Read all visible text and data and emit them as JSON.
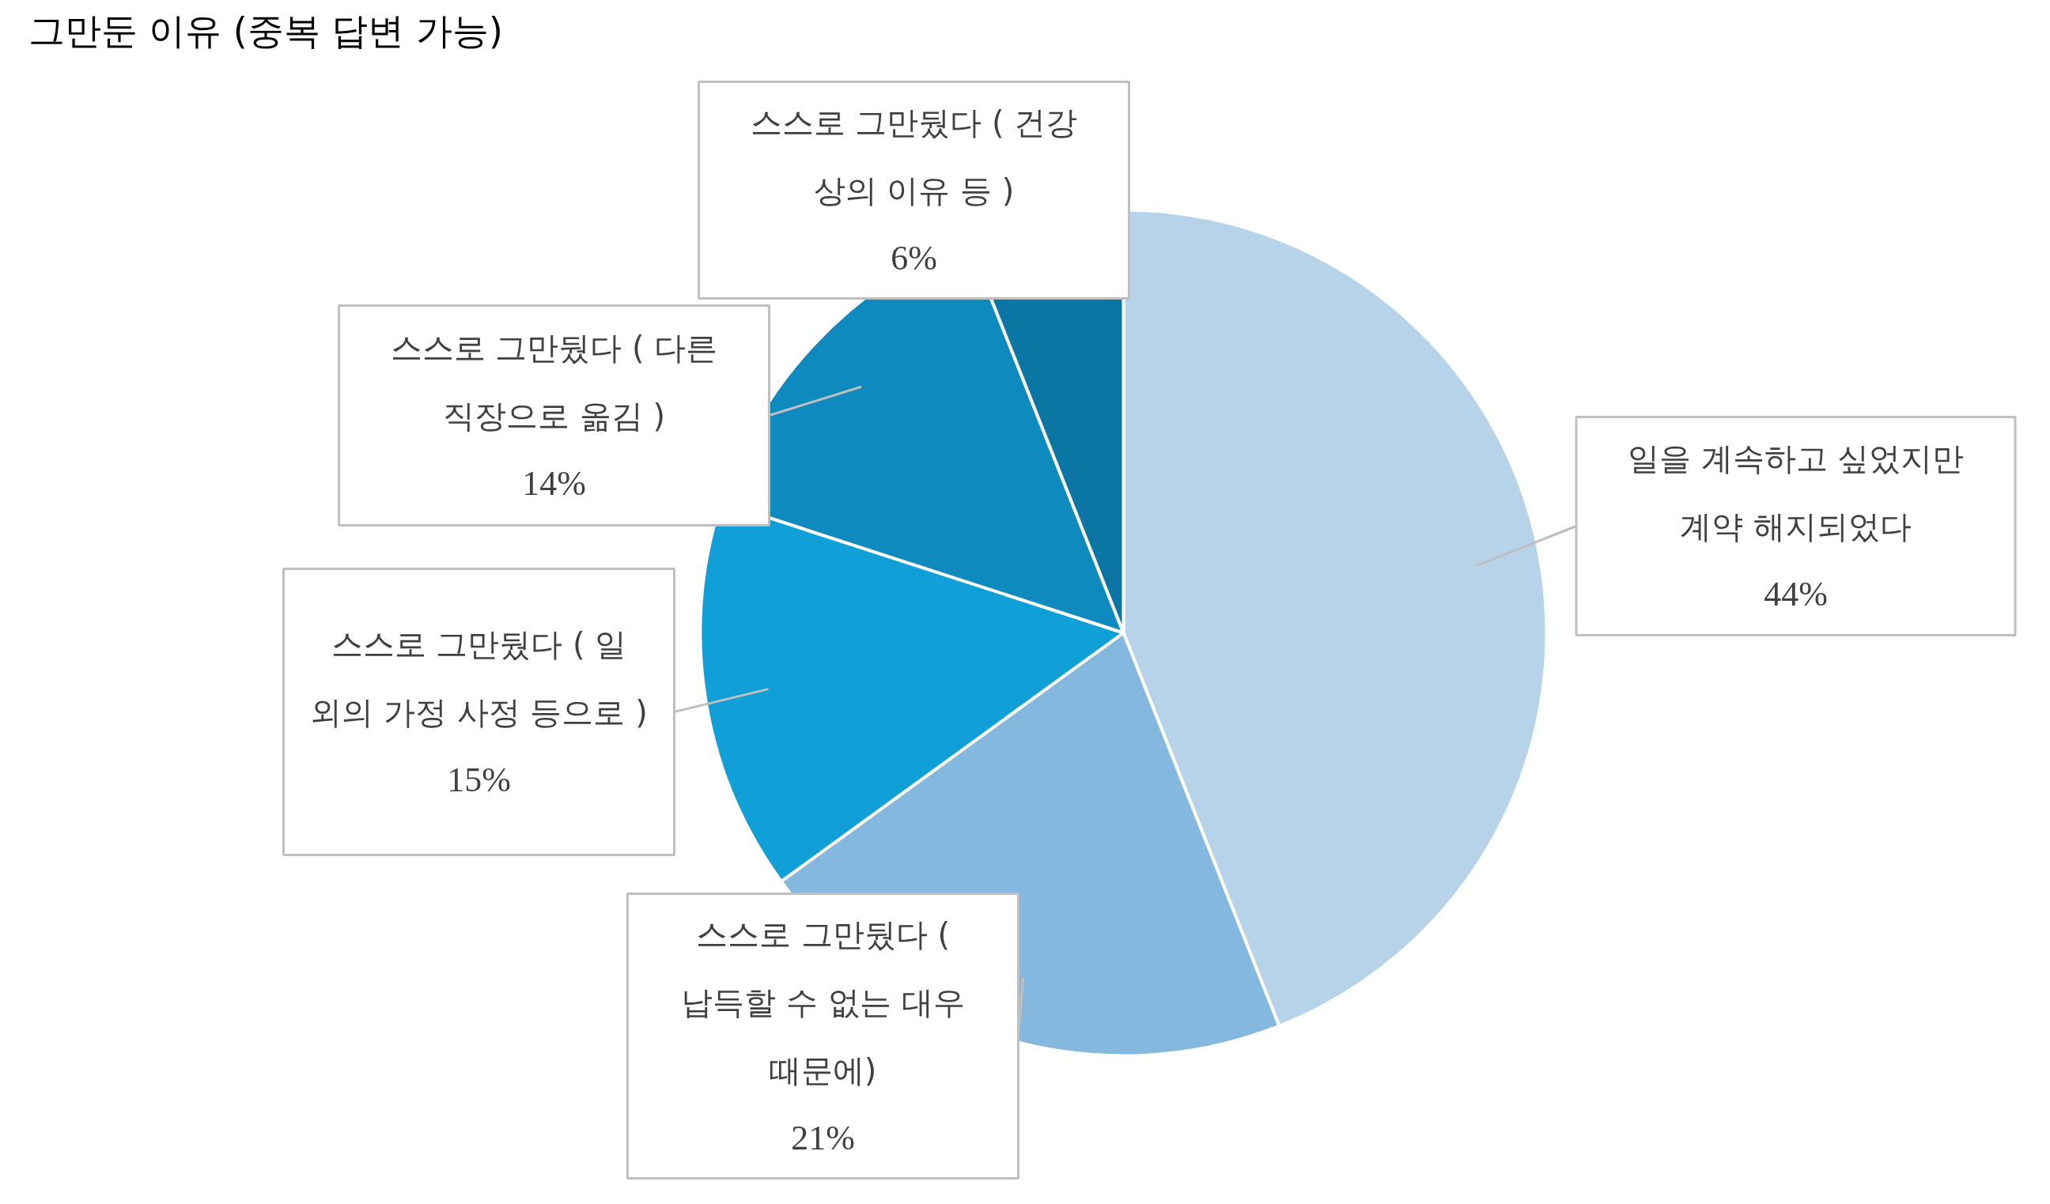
{
  "chart_data": {
    "type": "pie",
    "title": "그만둔 이유 (중복 답변 가능)",
    "categories": [
      "일을 계속하고 싶었지만 계약 해지되었다",
      "스스로 그만뒀다 ( 납득할 수 없는 대우 때문에)",
      "스스로 그만뒀다 ( 일 외의 가정 사정 등으로 )",
      "스스로 그만뒀다 ( 다른 직장으로 옮김 )",
      "스스로 그만뒀다 ( 건강 상의 이유 등 )"
    ],
    "values": [
      44,
      21,
      15,
      14,
      6
    ],
    "value_labels": [
      "44%",
      "21%",
      "15%",
      "14%",
      "6%"
    ],
    "colors": [
      "#b7d3ea",
      "#85b8df",
      "#109fd6",
      "#0f8abf",
      "#0b76a4"
    ]
  }
}
